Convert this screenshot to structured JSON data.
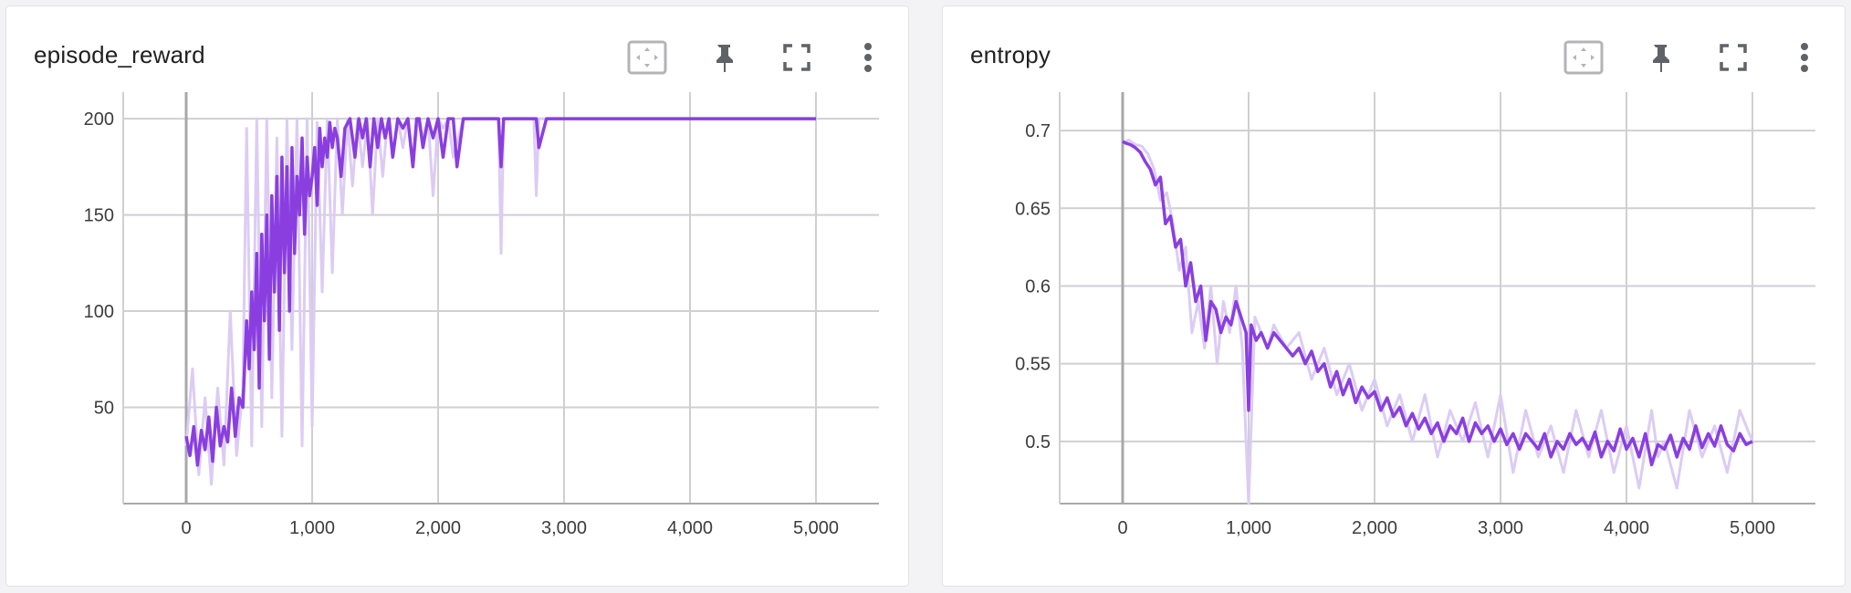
{
  "colors": {
    "raw": "#dcccf3",
    "smoothed": "#8a3ee0",
    "grid": "#cfcfd4",
    "zero_axis": "#a8a8ac",
    "icon": "#5f6368",
    "icon_light": "#b3b3b8"
  },
  "toolbar_icons": [
    "fit-domain-icon",
    "pin-icon",
    "fullscreen-icon",
    "more-vert-icon"
  ],
  "chart_data": [
    {
      "type": "line",
      "title": "episode_reward",
      "xlabel": "",
      "ylabel": "",
      "xlim": [
        -500,
        5500
      ],
      "ylim": [
        0,
        210
      ],
      "x_ticks": [
        0,
        1000,
        2000,
        3000,
        4000,
        5000
      ],
      "x_tick_labels": [
        "0",
        "1,000",
        "2,000",
        "3,000",
        "4,000",
        "5,000"
      ],
      "y_ticks": [
        50,
        100,
        150,
        200
      ],
      "y_tick_labels": [
        "50",
        "100",
        "150",
        "200"
      ],
      "grid": true,
      "series": [
        {
          "role": "raw",
          "x": [
            0,
            50,
            100,
            150,
            200,
            250,
            300,
            350,
            400,
            450,
            480,
            520,
            560,
            600,
            640,
            680,
            720,
            760,
            800,
            840,
            880,
            920,
            960,
            1000,
            1040,
            1080,
            1120,
            1160,
            1200,
            1240,
            1280,
            1320,
            1360,
            1400,
            1440,
            1480,
            1520,
            1560,
            1600,
            1640,
            1680,
            1720,
            1760,
            1800,
            1840,
            1880,
            1920,
            1960,
            2000,
            2040,
            2080,
            2120,
            2200,
            2300,
            2400,
            2480,
            2500,
            2520,
            2560,
            2700,
            2760,
            2780,
            2800,
            2860,
            3000,
            3500,
            4000,
            4500,
            5000
          ],
          "y": [
            30,
            70,
            15,
            55,
            10,
            60,
            20,
            100,
            25,
            60,
            195,
            30,
            200,
            40,
            200,
            55,
            190,
            35,
            200,
            80,
            200,
            30,
            200,
            40,
            198,
            110,
            200,
            120,
            200,
            150,
            200,
            165,
            200,
            175,
            200,
            150,
            200,
            170,
            200,
            180,
            200,
            185,
            200,
            175,
            200,
            190,
            200,
            160,
            200,
            195,
            200,
            180,
            200,
            200,
            200,
            200,
            130,
            200,
            200,
            200,
            200,
            160,
            200,
            200,
            200,
            200,
            200,
            200,
            200
          ]
        },
        {
          "role": "smoothed",
          "x": [
            0,
            30,
            60,
            90,
            120,
            150,
            180,
            210,
            240,
            270,
            300,
            330,
            360,
            390,
            420,
            450,
            480,
            500,
            520,
            540,
            560,
            580,
            600,
            620,
            640,
            660,
            680,
            700,
            720,
            740,
            760,
            780,
            800,
            820,
            840,
            860,
            880,
            900,
            920,
            940,
            960,
            980,
            1000,
            1020,
            1040,
            1060,
            1080,
            1100,
            1120,
            1140,
            1160,
            1180,
            1200,
            1230,
            1260,
            1300,
            1340,
            1370,
            1400,
            1430,
            1460,
            1490,
            1520,
            1550,
            1580,
            1610,
            1640,
            1680,
            1720,
            1760,
            1800,
            1830,
            1850,
            1880,
            1920,
            1960,
            2000,
            2040,
            2080,
            2120,
            2150,
            2200,
            2300,
            2400,
            2480,
            2500,
            2520,
            2560,
            2700,
            2760,
            2780,
            2800,
            2860,
            3000,
            3500,
            4000,
            4500,
            5000
          ],
          "y": [
            35,
            25,
            40,
            20,
            38,
            28,
            45,
            22,
            50,
            30,
            40,
            32,
            60,
            35,
            55,
            50,
            95,
            70,
            110,
            80,
            130,
            60,
            140,
            95,
            150,
            75,
            160,
            110,
            170,
            90,
            180,
            120,
            175,
            100,
            185,
            130,
            170,
            150,
            190,
            140,
            180,
            160,
            170,
            185,
            155,
            195,
            175,
            190,
            180,
            198,
            185,
            195,
            190,
            170,
            195,
            200,
            180,
            200,
            190,
            200,
            175,
            200,
            185,
            200,
            190,
            200,
            180,
            200,
            195,
            200,
            175,
            200,
            200,
            185,
            200,
            190,
            200,
            180,
            200,
            200,
            175,
            200,
            200,
            200,
            200,
            175,
            200,
            200,
            200,
            200,
            200,
            185,
            200,
            200,
            200,
            200,
            200,
            200
          ]
        }
      ]
    },
    {
      "type": "line",
      "title": "entropy",
      "xlabel": "",
      "ylabel": "",
      "xlim": [
        -500,
        5500
      ],
      "ylim": [
        0.46,
        0.72
      ],
      "x_ticks": [
        0,
        1000,
        2000,
        3000,
        4000,
        5000
      ],
      "x_tick_labels": [
        "0",
        "1,000",
        "2,000",
        "3,000",
        "4,000",
        "5,000"
      ],
      "y_ticks": [
        0.5,
        0.55,
        0.6,
        0.65,
        0.7
      ],
      "y_tick_labels": [
        "0.5",
        "0.55",
        "0.6",
        "0.65",
        "0.7"
      ],
      "grid": true,
      "series": [
        {
          "role": "raw",
          "x": [
            0,
            50,
            100,
            150,
            200,
            250,
            300,
            350,
            400,
            450,
            500,
            550,
            600,
            650,
            700,
            750,
            800,
            850,
            900,
            950,
            1000,
            1050,
            1100,
            1150,
            1200,
            1300,
            1400,
            1500,
            1600,
            1700,
            1800,
            1900,
            2000,
            2100,
            2200,
            2300,
            2400,
            2500,
            2600,
            2700,
            2800,
            2900,
            3000,
            3100,
            3200,
            3300,
            3400,
            3500,
            3600,
            3700,
            3800,
            3900,
            4000,
            4100,
            4200,
            4250,
            4300,
            4400,
            4500,
            4600,
            4700,
            4800,
            4900,
            5000
          ],
          "y": [
            0.692,
            0.694,
            0.691,
            0.69,
            0.685,
            0.675,
            0.655,
            0.66,
            0.64,
            0.61,
            0.625,
            0.57,
            0.59,
            0.56,
            0.6,
            0.55,
            0.59,
            0.57,
            0.6,
            0.56,
            0.46,
            0.58,
            0.57,
            0.56,
            0.575,
            0.56,
            0.57,
            0.54,
            0.56,
            0.53,
            0.55,
            0.52,
            0.54,
            0.51,
            0.53,
            0.5,
            0.53,
            0.49,
            0.52,
            0.5,
            0.525,
            0.49,
            0.53,
            0.48,
            0.52,
            0.49,
            0.51,
            0.48,
            0.52,
            0.49,
            0.52,
            0.48,
            0.51,
            0.47,
            0.52,
            0.49,
            0.5,
            0.47,
            0.52,
            0.49,
            0.51,
            0.48,
            0.52,
            0.5
          ]
        },
        {
          "role": "smoothed",
          "x": [
            0,
            20,
            60,
            100,
            140,
            180,
            220,
            260,
            300,
            340,
            380,
            420,
            460,
            500,
            540,
            580,
            620,
            660,
            700,
            740,
            780,
            820,
            860,
            900,
            940,
            980,
            1000,
            1020,
            1060,
            1100,
            1150,
            1200,
            1250,
            1300,
            1350,
            1400,
            1450,
            1500,
            1550,
            1600,
            1650,
            1700,
            1750,
            1800,
            1850,
            1900,
            1950,
            2000,
            2050,
            2100,
            2150,
            2200,
            2250,
            2300,
            2350,
            2400,
            2450,
            2500,
            2550,
            2600,
            2650,
            2700,
            2750,
            2800,
            2850,
            2900,
            2950,
            3000,
            3050,
            3100,
            3150,
            3200,
            3250,
            3300,
            3350,
            3400,
            3450,
            3500,
            3550,
            3600,
            3650,
            3700,
            3750,
            3800,
            3850,
            3900,
            3950,
            4000,
            4050,
            4100,
            4150,
            4200,
            4250,
            4300,
            4350,
            4400,
            4450,
            4500,
            4550,
            4600,
            4650,
            4700,
            4750,
            4800,
            4850,
            4900,
            4950,
            5000
          ],
          "y": [
            0.693,
            0.692,
            0.691,
            0.689,
            0.686,
            0.68,
            0.675,
            0.665,
            0.67,
            0.64,
            0.645,
            0.625,
            0.63,
            0.6,
            0.615,
            0.59,
            0.6,
            0.565,
            0.59,
            0.585,
            0.57,
            0.58,
            0.575,
            0.59,
            0.58,
            0.57,
            0.52,
            0.575,
            0.565,
            0.57,
            0.56,
            0.57,
            0.565,
            0.56,
            0.555,
            0.56,
            0.55,
            0.558,
            0.545,
            0.55,
            0.535,
            0.545,
            0.53,
            0.54,
            0.525,
            0.535,
            0.528,
            0.532,
            0.52,
            0.528,
            0.516,
            0.522,
            0.51,
            0.518,
            0.508,
            0.515,
            0.505,
            0.512,
            0.5,
            0.51,
            0.505,
            0.515,
            0.5,
            0.512,
            0.505,
            0.51,
            0.5,
            0.508,
            0.498,
            0.505,
            0.495,
            0.505,
            0.5,
            0.495,
            0.505,
            0.49,
            0.5,
            0.495,
            0.505,
            0.498,
            0.502,
            0.495,
            0.506,
            0.49,
            0.5,
            0.494,
            0.508,
            0.495,
            0.502,
            0.49,
            0.505,
            0.485,
            0.498,
            0.495,
            0.504,
            0.49,
            0.502,
            0.495,
            0.51,
            0.496,
            0.505,
            0.497,
            0.51,
            0.498,
            0.494,
            0.505,
            0.498,
            0.5
          ]
        }
      ]
    }
  ]
}
